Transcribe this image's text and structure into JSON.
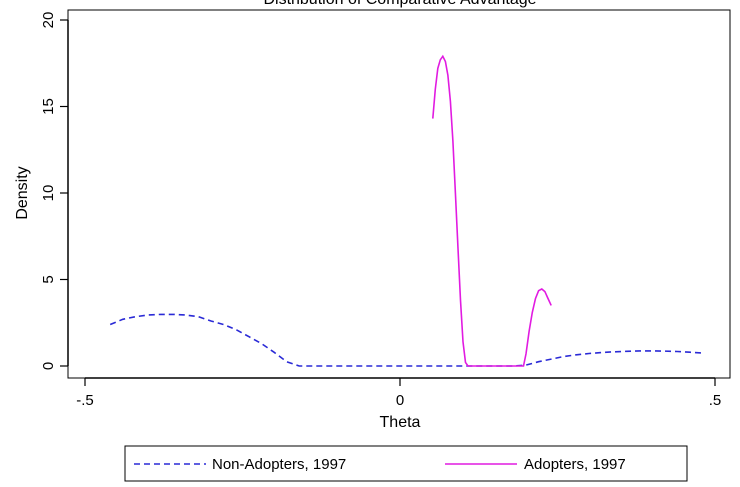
{
  "chart_data": {
    "type": "line",
    "title": "Distribution of Comparative Advantage",
    "xlabel": "Theta",
    "ylabel": "Density",
    "xlim": [
      -0.5,
      0.5
    ],
    "ylim": [
      0,
      20
    ],
    "xticks": [
      {
        "value": -0.5,
        "label": "-.5"
      },
      {
        "value": 0,
        "label": "0"
      },
      {
        "value": 0.5,
        "label": ".5"
      }
    ],
    "yticks": [
      {
        "value": 0,
        "label": "0"
      },
      {
        "value": 5,
        "label": "5"
      },
      {
        "value": 10,
        "label": "10"
      },
      {
        "value": 15,
        "label": "15"
      },
      {
        "value": 20,
        "label": "20"
      }
    ],
    "grid": false,
    "legend_position": "bottom",
    "series": [
      {
        "name": "Non-Adopters, 1997",
        "color": "#2a2ad6",
        "dash": "dashed",
        "x": [
          -0.46,
          -0.44,
          -0.42,
          -0.4,
          -0.38,
          -0.36,
          -0.34,
          -0.32,
          -0.3,
          -0.28,
          -0.26,
          -0.24,
          -0.22,
          -0.2,
          -0.18,
          -0.16,
          -0.14,
          -0.1,
          -0.05,
          0.0,
          0.05,
          0.1,
          0.15,
          0.18,
          0.2,
          0.22,
          0.24,
          0.26,
          0.28,
          0.3,
          0.32,
          0.34,
          0.36,
          0.38,
          0.4,
          0.42,
          0.44,
          0.46,
          0.48
        ],
        "y": [
          2.4,
          2.7,
          2.85,
          2.95,
          2.98,
          2.98,
          2.95,
          2.85,
          2.6,
          2.4,
          2.1,
          1.7,
          1.3,
          0.8,
          0.25,
          0.0,
          0.0,
          0.0,
          0.0,
          0.0,
          0.0,
          0.0,
          0.0,
          0.0,
          0.05,
          0.25,
          0.4,
          0.55,
          0.65,
          0.72,
          0.78,
          0.82,
          0.85,
          0.87,
          0.87,
          0.86,
          0.84,
          0.8,
          0.75
        ]
      },
      {
        "name": "Adopters, 1997",
        "color": "#e11be1",
        "dash": "solid",
        "x": [
          0.052,
          0.056,
          0.06,
          0.064,
          0.068,
          0.072,
          0.076,
          0.08,
          0.084,
          0.088,
          0.092,
          0.096,
          0.1,
          0.104,
          0.108,
          0.12,
          0.14,
          0.16,
          0.18,
          0.19,
          0.196,
          0.2,
          0.205,
          0.21,
          0.215,
          0.22,
          0.225,
          0.23,
          0.235,
          0.24
        ],
        "y": [
          14.3,
          16.0,
          17.2,
          17.7,
          17.9,
          17.6,
          16.8,
          15.3,
          13.0,
          10.0,
          6.8,
          3.8,
          1.4,
          0.2,
          0.0,
          0.0,
          0.0,
          0.0,
          0.0,
          0.0,
          0.0,
          0.7,
          2.0,
          3.1,
          3.9,
          4.35,
          4.45,
          4.3,
          3.9,
          3.5
        ]
      }
    ]
  }
}
